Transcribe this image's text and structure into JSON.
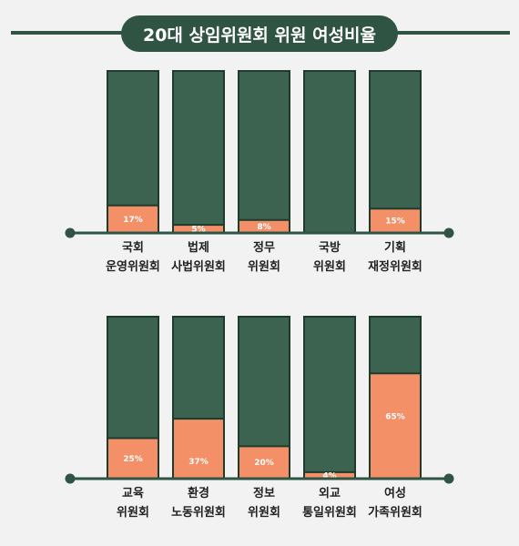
{
  "chart_data": {
    "type": "bar",
    "title": "20대 상임위원회 위원 여성비율",
    "ylim": [
      0,
      100
    ],
    "unit": "%",
    "rows": [
      {
        "categories": [
          [
            "국회",
            "운영위원회"
          ],
          [
            "법제",
            "사법위원회"
          ],
          [
            "정무",
            "위원회"
          ],
          [
            "국방",
            "위원회"
          ],
          [
            "기획",
            "재정위원회"
          ]
        ],
        "values": [
          17,
          5,
          8,
          0,
          15
        ],
        "labels": [
          "17%",
          "5%",
          "8%",
          "",
          "15%"
        ]
      },
      {
        "categories": [
          [
            "교육",
            "위원회"
          ],
          [
            "환경",
            "노동위원회"
          ],
          [
            "정보",
            "위원회"
          ],
          [
            "외교",
            "통일위원회"
          ],
          [
            "여성",
            "가족위원회"
          ]
        ],
        "values": [
          25,
          37,
          20,
          4,
          65
        ],
        "labels": [
          "25%",
          "37%",
          "20%",
          "4%",
          "65%"
        ]
      }
    ],
    "colors": {
      "background": "#f2f2f2",
      "bar_total": "#3b634f",
      "bar_border": "#1f3b2e",
      "bar_female": "#f49068",
      "baseline": "#2f5443",
      "title_bg": "#2f5443"
    }
  }
}
